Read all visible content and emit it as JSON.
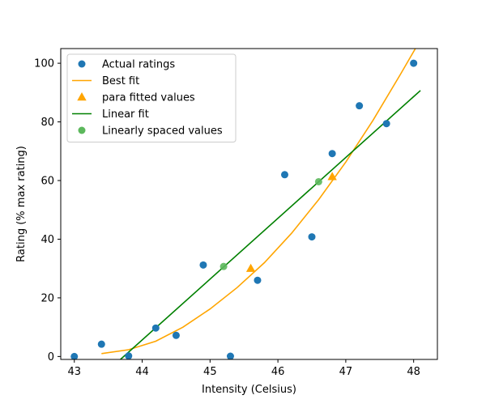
{
  "chart_data": {
    "type": "scatter",
    "title": "",
    "xlabel": "Intensity (Celsius)",
    "ylabel": "Rating (% max rating)",
    "xlim": [
      42.8,
      48.35
    ],
    "ylim": [
      -1,
      105
    ],
    "xticks": [
      "43",
      "44",
      "45",
      "46",
      "47",
      "48"
    ],
    "yticks": [
      "0",
      "20",
      "40",
      "60",
      "80",
      "100"
    ],
    "grid": false,
    "legend_position": "top-left",
    "series": [
      {
        "name": "Actual ratings",
        "kind": "scatter",
        "marker": "circle",
        "color": "#1f77b4",
        "points": [
          [
            43.0,
            0
          ],
          [
            43.4,
            4.2
          ],
          [
            43.8,
            0.2
          ],
          [
            44.2,
            9.7
          ],
          [
            44.5,
            7.2
          ],
          [
            44.9,
            31.2
          ],
          [
            45.3,
            0.1
          ],
          [
            45.7,
            26
          ],
          [
            46.1,
            62
          ],
          [
            46.5,
            40.8
          ],
          [
            46.8,
            69.2
          ],
          [
            47.2,
            85.5
          ],
          [
            47.6,
            79.4
          ],
          [
            48.0,
            100
          ]
        ]
      },
      {
        "name": "Best fit",
        "kind": "line",
        "color": "#ffa500",
        "points": [
          [
            43.4,
            1
          ],
          [
            43.8,
            2.3
          ],
          [
            44.2,
            5.2
          ],
          [
            44.6,
            10
          ],
          [
            45.0,
            16.2
          ],
          [
            45.4,
            23.5
          ],
          [
            45.8,
            32
          ],
          [
            46.2,
            42
          ],
          [
            46.6,
            53.5
          ],
          [
            47.0,
            66.3
          ],
          [
            47.4,
            80.5
          ],
          [
            47.8,
            96
          ],
          [
            48.05,
            106
          ]
        ]
      },
      {
        "name": "para fitted values",
        "kind": "scatter",
        "marker": "triangle",
        "color": "#ffa500",
        "points": [
          [
            45.6,
            30
          ],
          [
            46.8,
            61.3
          ]
        ]
      },
      {
        "name": "Linear fit",
        "kind": "line",
        "color": "#008000",
        "points": [
          [
            43.68,
            -1
          ],
          [
            48.1,
            90.7
          ]
        ]
      },
      {
        "name": "Linearly spaced values",
        "kind": "scatter",
        "marker": "circle",
        "color": "#5cb85c",
        "points": [
          [
            45.2,
            30.7
          ],
          [
            46.6,
            59.6
          ]
        ]
      }
    ]
  }
}
